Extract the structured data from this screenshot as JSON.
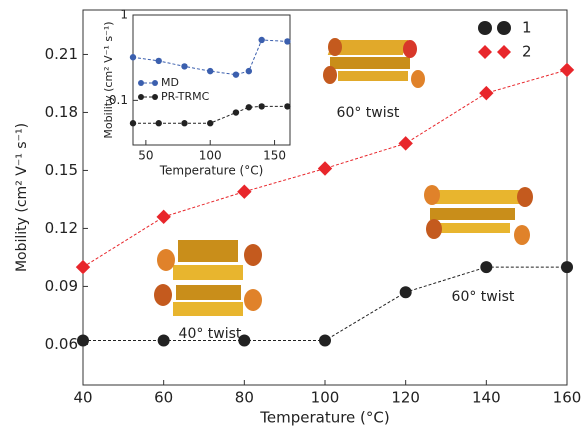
{
  "chart_data": [
    {
      "type": "line",
      "x_label": "Temperature (°C)",
      "y_label": "Mobility (cm² V⁻¹ s⁻¹)",
      "x": [
        40,
        60,
        80,
        100,
        120,
        140,
        160
      ],
      "series": [
        {
          "name": "1",
          "color": "#222222",
          "marker": "circle",
          "values": [
            0.062,
            0.062,
            0.062,
            0.062,
            0.087,
            0.1,
            0.1
          ]
        },
        {
          "name": "2",
          "color": "#e8262b",
          "marker": "diamond",
          "values": [
            0.1,
            0.126,
            0.139,
            0.151,
            0.164,
            0.19,
            0.202
          ]
        }
      ],
      "xlim": [
        40,
        160
      ],
      "ylim": [
        0.039,
        0.233
      ],
      "xticks": [
        40,
        60,
        80,
        100,
        120,
        140,
        160
      ],
      "yticks": [
        0.06,
        0.09,
        0.12,
        0.15,
        0.18,
        0.21
      ],
      "legend": "upper right",
      "annotations": [
        "60° twist",
        "60° twist",
        "40° twist"
      ]
    },
    {
      "type": "line",
      "x_label": "Temperature (°C)",
      "y_label": "Mobility (cm² V⁻¹ s⁻¹)",
      "x": [
        40,
        60,
        80,
        100,
        120,
        130,
        140,
        160
      ],
      "series": [
        {
          "name": "MD",
          "color": "#3b5fae",
          "values": [
            0.32,
            0.29,
            0.25,
            0.22,
            0.2,
            0.22,
            0.51,
            0.49
          ]
        },
        {
          "name": "PR-TRMC",
          "color": "#222222",
          "values": [
            0.054,
            0.054,
            0.054,
            0.054,
            0.072,
            0.083,
            0.085,
            0.085
          ]
        }
      ],
      "xlim": [
        40,
        162
      ],
      "ylim": [
        0.03,
        1
      ],
      "log_y": true,
      "xticks": [
        50,
        100,
        150
      ],
      "yticks": [
        0.1,
        1
      ],
      "legend": "lower left"
    }
  ]
}
